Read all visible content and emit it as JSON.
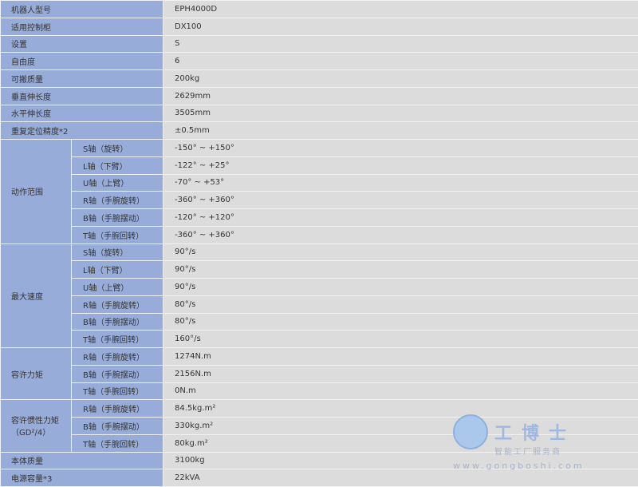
{
  "rows_simple_top": [
    {
      "label": "机器人型号",
      "value": "EPH4000D"
    },
    {
      "label": "适用控制柜",
      "value": "DX100"
    },
    {
      "label": "设置",
      "value": "S"
    },
    {
      "label": "自由度",
      "value": "6"
    },
    {
      "label": "可搬质量",
      "value": "200kg"
    },
    {
      "label": "垂直伸长度",
      "value": "2629mm"
    },
    {
      "label": "水平伸长度",
      "value": "3505mm"
    },
    {
      "label": "重复定位精度*2",
      "value": "±0.5mm"
    }
  ],
  "groups": [
    {
      "label": "动作范围",
      "items": [
        {
          "axis": "S轴（旋转）",
          "value": "-150° ~ +150°"
        },
        {
          "axis": "L轴（下臂）",
          "value": "-122° ~ +25°"
        },
        {
          "axis": "U轴（上臂）",
          "value": "-70° ~ +53°"
        },
        {
          "axis": "R轴（手腕旋转）",
          "value": "-360° ~ +360°"
        },
        {
          "axis": "B轴（手腕摆动）",
          "value": "-120° ~ +120°"
        },
        {
          "axis": "T轴（手腕回转）",
          "value": "-360° ~ +360°"
        }
      ]
    },
    {
      "label": "最大速度",
      "items": [
        {
          "axis": "S轴（旋转）",
          "value": "90°/s"
        },
        {
          "axis": "L轴（下臂）",
          "value": "90°/s"
        },
        {
          "axis": "U轴（上臂）",
          "value": "90°/s"
        },
        {
          "axis": "R轴（手腕旋转）",
          "value": "80°/s"
        },
        {
          "axis": "B轴（手腕摆动）",
          "value": "80°/s"
        },
        {
          "axis": "T轴（手腕回转）",
          "value": "160°/s"
        }
      ]
    },
    {
      "label": "容许力矩",
      "items": [
        {
          "axis": "R轴（手腕旋转）",
          "value": "1274N.m"
        },
        {
          "axis": "B轴（手腕摆动）",
          "value": "2156N.m"
        },
        {
          "axis": "T轴（手腕回转）",
          "value": "0N.m"
        }
      ]
    },
    {
      "label": "容许惯性力矩（GD²/4）",
      "items": [
        {
          "axis": "R轴（手腕旋转）",
          "value": "84.5kg.m²"
        },
        {
          "axis": "B轴（手腕摆动）",
          "value": "330kg.m²"
        },
        {
          "axis": "T轴（手腕回转）",
          "value": "80kg.m²"
        }
      ]
    }
  ],
  "rows_simple_bottom": [
    {
      "label": "本体质量",
      "value": "3100kg"
    },
    {
      "label": "电源容量*3",
      "value": "22kVA"
    }
  ],
  "watermark": {
    "title": "工博士",
    "slogan": "智能工厂服务商",
    "url": "www.gongboshi.com"
  },
  "colors": {
    "label_bg": "#98acd9",
    "value_bg": "#dcdcdc"
  }
}
